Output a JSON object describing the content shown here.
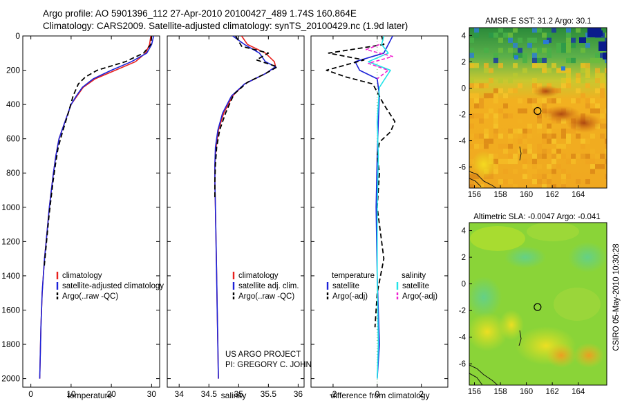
{
  "header": {
    "title_line1": "Argo profile: AO 5901396_112 27-Apr-2010 20100427_489 1.74S 160.864E",
    "title_line2": "Climatology: CARS2009. Satellite-adjusted climatology: synTS_20100429.nc (1.9d later)"
  },
  "credits": {
    "project": "US ARGO PROJECT",
    "pi": "PI: GREGORY C. JOHNSON",
    "side": "CSIRO 05-May-2010 10:30:28"
  },
  "colors": {
    "climatology": "#e8201c",
    "satellite": "#1c22d8",
    "argo": "#000000",
    "sat_salinity": "#22e3e8",
    "argo_salinity": "#f020d0"
  },
  "chart_data": [
    {
      "type": "line",
      "title": "",
      "xlabel": "temperature",
      "ylabel": "",
      "xlim": [
        -2,
        32
      ],
      "ylim": [
        2050,
        0
      ],
      "xticks": [
        0,
        10,
        20,
        30
      ],
      "yticks": [
        0,
        200,
        400,
        600,
        800,
        1000,
        1200,
        1400,
        1600,
        1800,
        2000
      ],
      "legend": [
        "climatology",
        "satellite-adjusted climatology",
        "Argo(..raw -QC)"
      ],
      "series": [
        {
          "name": "climatology",
          "style": "climatology",
          "x": [
            29.8,
            29.5,
            28.5,
            26.0,
            21.0,
            16.0,
            13.0,
            11.5,
            10.0,
            8.5,
            7.0,
            6.2,
            5.6,
            5.1,
            4.6,
            4.2,
            3.8,
            3.4,
            3.1,
            2.8,
            2.5,
            2.2
          ],
          "y": [
            0,
            50,
            100,
            150,
            200,
            250,
            300,
            350,
            400,
            500,
            600,
            700,
            800,
            900,
            1000,
            1100,
            1200,
            1300,
            1400,
            1500,
            1700,
            2000
          ]
        },
        {
          "name": "satellite-adjusted climatology",
          "style": "satellite",
          "x": [
            30.5,
            30.0,
            28.8,
            25.0,
            20.0,
            15.5,
            12.8,
            11.3,
            10.0,
            8.5,
            7.0,
            6.2,
            5.6,
            5.1,
            4.6,
            4.2,
            3.8,
            3.4,
            3.1,
            2.8,
            2.5,
            2.2
          ],
          "y": [
            0,
            50,
            100,
            150,
            200,
            250,
            300,
            350,
            400,
            500,
            600,
            700,
            800,
            900,
            1000,
            1100,
            1200,
            1300,
            1400,
            1500,
            1700,
            2000
          ]
        },
        {
          "name": "Argo(..raw -QC)",
          "style": "argo",
          "x": [
            30.0,
            29.8,
            28.0,
            23.5,
            16.5,
            13.5,
            11.8,
            10.5,
            9.3,
            8.0,
            6.8,
            6.1,
            5.5,
            5.0,
            4.5,
            4.1,
            3.7,
            3.3
          ],
          "y": [
            0,
            50,
            100,
            150,
            200,
            240,
            280,
            350,
            450,
            550,
            650,
            750,
            850,
            950,
            1050,
            1150,
            1250,
            1350
          ]
        }
      ]
    },
    {
      "type": "line",
      "title": "",
      "xlabel": "salinity",
      "ylabel": "",
      "xlim": [
        33.8,
        36.1
      ],
      "ylim": [
        2050,
        0
      ],
      "xticks": [
        34,
        34.5,
        35,
        35.5,
        36
      ],
      "legend": [
        "climatology",
        "satellite adj. clim.",
        "Argo(..raw -QC)"
      ],
      "series": [
        {
          "name": "climatology",
          "style": "climatology",
          "x": [
            35.05,
            35.15,
            35.45,
            35.6,
            35.62,
            35.45,
            35.1,
            34.9,
            34.75,
            34.66,
            34.62,
            34.6,
            34.6,
            34.61,
            34.62,
            34.63,
            34.64,
            34.65,
            34.66
          ],
          "y": [
            0,
            50,
            100,
            150,
            180,
            220,
            280,
            350,
            450,
            550,
            650,
            750,
            850,
            1000,
            1200,
            1400,
            1600,
            1800,
            2000
          ]
        },
        {
          "name": "satellite adj. clim.",
          "style": "satellite",
          "x": [
            34.9,
            35.1,
            35.35,
            35.45,
            35.62,
            35.45,
            35.1,
            34.88,
            34.73,
            34.65,
            34.61,
            34.6,
            34.6,
            34.61,
            34.62,
            34.63,
            34.64,
            34.65,
            34.66
          ],
          "y": [
            0,
            50,
            100,
            150,
            180,
            220,
            280,
            350,
            450,
            550,
            650,
            750,
            850,
            1000,
            1200,
            1400,
            1600,
            1800,
            2000
          ]
        },
        {
          "name": "Argo(..raw -QC)",
          "style": "argo",
          "x": [
            34.95,
            35.05,
            35.5,
            35.3,
            35.65,
            35.45,
            35.15,
            34.92,
            34.78,
            34.68,
            34.63,
            34.61,
            34.6,
            34.6
          ],
          "y": [
            0,
            60,
            100,
            140,
            180,
            220,
            270,
            340,
            450,
            550,
            650,
            750,
            850,
            950
          ]
        }
      ]
    },
    {
      "type": "line",
      "title": "",
      "xlabel": "difference from climatology",
      "ylabel": "",
      "xlim": [
        -3,
        3.2
      ],
      "ylim": [
        2050,
        0
      ],
      "xticks": [
        -2,
        0,
        2
      ],
      "legend": [
        "temperature",
        "satellite",
        "Argo(-adj)",
        "salinity",
        "satellite",
        "Argo(-adj)"
      ],
      "series": [
        {
          "name": "temperature satellite",
          "style": "satellite",
          "x": [
            0.7,
            0.5,
            0.3,
            -1.0,
            -0.8,
            0.0,
            0.1,
            0.05,
            0.0,
            -0.05,
            0.0,
            0.1,
            0.0
          ],
          "y": [
            0,
            50,
            100,
            150,
            200,
            250,
            350,
            500,
            700,
            1000,
            1400,
            1800,
            2000
          ]
        },
        {
          "name": "temperature Argo(-adj)",
          "style": "argo",
          "x": [
            0.2,
            0.3,
            -2.2,
            -0.6,
            -2.3,
            -1.4,
            -0.2,
            0.3,
            0.8,
            0.6,
            0.1,
            0.0,
            0.1,
            0.0,
            0.3,
            0.0,
            -0.1
          ],
          "y": [
            0,
            50,
            100,
            140,
            200,
            240,
            280,
            400,
            500,
            560,
            620,
            700,
            800,
            1000,
            1300,
            1500,
            1700
          ]
        },
        {
          "name": "salinity satellite",
          "style": "sat_salinity",
          "x": [
            0.3,
            0.2,
            0.5,
            -0.4,
            0.6,
            0.1,
            0.0,
            0.05,
            0.0,
            0.0,
            0.05,
            0.0
          ],
          "y": [
            0,
            50,
            100,
            150,
            200,
            300,
            500,
            700,
            1000,
            1400,
            1800,
            2000
          ]
        },
        {
          "name": "salinity Argo(-adj)",
          "style": "argo_salinity",
          "x": [
            0.1,
            -0.5,
            0.7,
            -0.4,
            0.5,
            0.0
          ],
          "y": [
            50,
            80,
            120,
            160,
            200,
            250
          ]
        }
      ]
    },
    {
      "type": "heatmap",
      "title": "AMSR-E SST: 31.2 Argo: 30.1",
      "xlim": [
        155.6,
        166.2
      ],
      "ylim": [
        -7.6,
        4.6
      ],
      "xticks": [
        156,
        158,
        160,
        162,
        164
      ],
      "yticks": [
        -6,
        -4,
        -2,
        0,
        2,
        4
      ],
      "marker": {
        "lon": 160.864,
        "lat": -1.74
      }
    },
    {
      "type": "heatmap",
      "title": "Altimetric SLA: -0.0047 Argo: -0.041",
      "xlim": [
        155.6,
        166.2
      ],
      "ylim": [
        -7.6,
        4.6
      ],
      "xticks": [
        156,
        158,
        160,
        162,
        164
      ],
      "yticks": [
        -6,
        -4,
        -2,
        0,
        2,
        4
      ],
      "marker": {
        "lon": 160.864,
        "lat": -1.74
      }
    }
  ]
}
